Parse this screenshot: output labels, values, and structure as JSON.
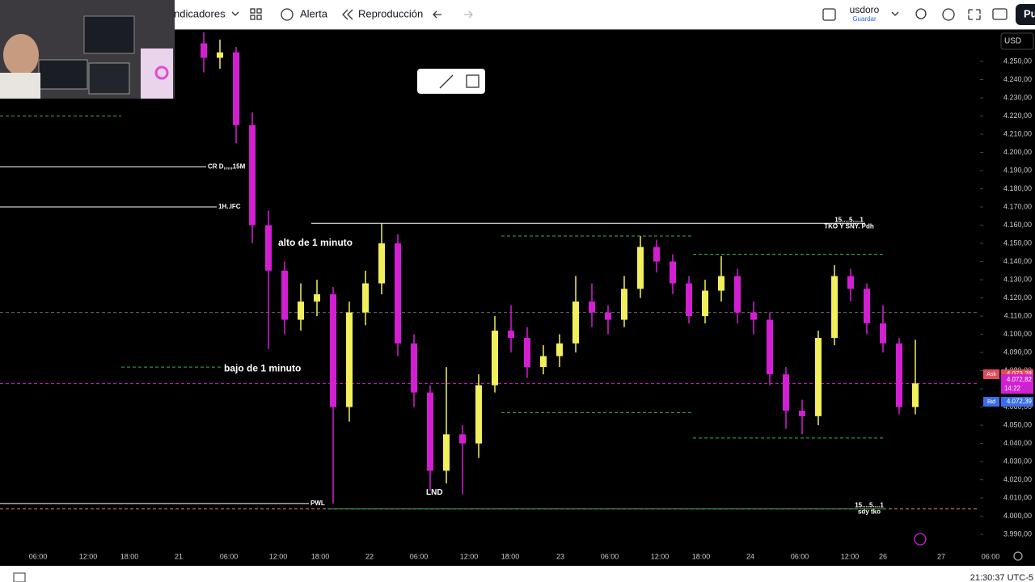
{
  "toolbar": {
    "indicators": "ndicadores",
    "alert": "Alerta",
    "replay": "Reproducción",
    "layout_name": "usdoro",
    "save": "Guardar",
    "publish": "Pu"
  },
  "currency": "USD",
  "clock": "21:30:37 UTC-5",
  "chart_data": {
    "type": "candlestick",
    "up_color": "#f2ef5c",
    "down_color": "#d21fd2",
    "ylim": [
      3981.6,
      4266.9
    ],
    "yticks": [
      {
        "value": 4250,
        "label": "4.250,00"
      },
      {
        "value": 4240,
        "label": "4.240,00"
      },
      {
        "value": 4230,
        "label": "4.230,00"
      },
      {
        "value": 4220,
        "label": "4.220,00"
      },
      {
        "value": 4210,
        "label": "4.210,00"
      },
      {
        "value": 4200,
        "label": "4.200,00"
      },
      {
        "value": 4190,
        "label": "4.190,00"
      },
      {
        "value": 4180,
        "label": "4.180,00"
      },
      {
        "value": 4170,
        "label": "4.170,00"
      },
      {
        "value": 4160,
        "label": "4.160,00"
      },
      {
        "value": 4150,
        "label": "4.150,00"
      },
      {
        "value": 4140,
        "label": "4.140,00"
      },
      {
        "value": 4130,
        "label": "4.130,00"
      },
      {
        "value": 4120,
        "label": "4.120,00"
      },
      {
        "value": 4110,
        "label": "4.110,00"
      },
      {
        "value": 4100,
        "label": "4.100,00"
      },
      {
        "value": 4090,
        "label": "4.090,00"
      },
      {
        "value": 4080,
        "label": "4.080,00"
      },
      {
        "value": 4070,
        "label": "4.070,00"
      },
      {
        "value": 4060,
        "label": "4.060,00"
      },
      {
        "value": 4050,
        "label": "4.050,00"
      },
      {
        "value": 4040,
        "label": "4.040,00"
      },
      {
        "value": 4030,
        "label": "4.030,00"
      },
      {
        "value": 4020,
        "label": "4.020,00"
      },
      {
        "value": 4010,
        "label": "4.010,00"
      },
      {
        "value": 4000,
        "label": "4.000,00"
      },
      {
        "value": 3990,
        "label": "3.990,00"
      }
    ],
    "xlabels": [
      "06:00",
      "12:00",
      "18:00",
      "21",
      "06:00",
      "12:00",
      "18:00",
      "22",
      "06:00",
      "12:00",
      "18:00",
      "23",
      "06:00",
      "12:00",
      "18:00",
      "24",
      "06:00",
      "12:00",
      "26",
      "27",
      "06:00"
    ],
    "open": [
      4260,
      4252,
      4255,
      4215,
      4160,
      4135,
      4108,
      4118,
      4122,
      4060,
      4112,
      4128,
      4150,
      4095,
      4068,
      4025,
      4045,
      4040,
      4072,
      4102,
      4098,
      4082,
      4088,
      4095,
      4118,
      4112,
      4108,
      4125,
      4148,
      4140,
      4128,
      4110,
      4124,
      4132,
      4112,
      4108,
      4078,
      4058,
      4055,
      4098,
      4132,
      4125,
      4106,
      4095,
      4060
    ],
    "high": [
      4266,
      4262,
      4258,
      4222,
      4168,
      4140,
      4128,
      4130,
      4126,
      4118,
      4135,
      4161,
      4155,
      4100,
      4072,
      4082,
      4050,
      4078,
      4110,
      4116,
      4104,
      4094,
      4100,
      4132,
      4128,
      4116,
      4132,
      4154,
      4152,
      4144,
      4132,
      4130,
      4143,
      4136,
      4118,
      4112,
      4082,
      4064,
      4102,
      4138,
      4136,
      4128,
      4116,
      4098,
      4097
    ],
    "low": [
      4244,
      4246,
      4205,
      4150,
      4092,
      4100,
      4102,
      4110,
      4007,
      4052,
      4105,
      4122,
      4088,
      4060,
      4014,
      4018,
      4012,
      4032,
      4068,
      4090,
      4076,
      4078,
      4082,
      4090,
      4104,
      4100,
      4104,
      4120,
      4134,
      4122,
      4106,
      4106,
      4118,
      4106,
      4100,
      4072,
      4048,
      4045,
      4050,
      4094,
      4118,
      4100,
      4090,
      4056,
      4056
    ],
    "close": [
      4252,
      4255,
      4215,
      4160,
      4135,
      4108,
      4118,
      4122,
      4060,
      4112,
      4128,
      4150,
      4095,
      4068,
      4025,
      4045,
      4040,
      4072,
      4102,
      4098,
      4082,
      4088,
      4095,
      4118,
      4112,
      4108,
      4125,
      4148,
      4140,
      4128,
      4110,
      4124,
      4132,
      4112,
      4108,
      4078,
      4058,
      4055,
      4098,
      4132,
      4125,
      4106,
      4095,
      4060,
      4073
    ],
    "levels": [
      {
        "value": 4220,
        "color": "#3fae4a",
        "dashed": true
      },
      {
        "value": 4192,
        "color": "#ffffff",
        "dashed": false,
        "label": "CR D,,,,,15M"
      },
      {
        "value": 4170,
        "color": "#ffffff",
        "dashed": false,
        "label": "1H..IFC"
      },
      {
        "value": 4161,
        "color": "#ffffff",
        "dashed": false,
        "label": "15....5....1",
        "label2": "TKO Y  SNY. Pdh"
      },
      {
        "value": 4154,
        "color": "#3fae4a",
        "dashed": true
      },
      {
        "value": 4144,
        "color": "#3fae4a",
        "dashed": true
      },
      {
        "value": 4112,
        "color": "#666666",
        "dashed": true
      },
      {
        "value": 4082,
        "color": "#3fae4a",
        "dashed": true
      },
      {
        "value": 4057,
        "color": "#3fae4a",
        "dashed": true
      },
      {
        "value": 4043,
        "color": "#3fae4a",
        "dashed": true
      },
      {
        "value": 4007,
        "color": "#ffffff",
        "dashed": false,
        "label": "PWL"
      },
      {
        "value": 4004,
        "color": "#e8913a",
        "dashed": true
      },
      {
        "value": 4004,
        "color": "#3fae4a",
        "dashed": false,
        "label": "15....5....1",
        "label2": "sdy  tko"
      },
      {
        "value": 4073,
        "color": "#d21fd2",
        "dashed": true
      }
    ],
    "annotations": [
      {
        "text": "alto  de  1 minuto",
        "value": 4150
      },
      {
        "text": "bajo   de  1  minuto",
        "value": 4081
      },
      {
        "text": "LND",
        "value": 4013
      }
    ],
    "quotes": [
      {
        "label": "Ask",
        "value": 4073.28,
        "value_label": "4.073,28",
        "color": "#e14b5a"
      },
      {
        "value": 4072.82,
        "value_label": "4.072,82",
        "extra": "14:22",
        "color": "#d21fd2"
      },
      {
        "label": "Bid",
        "value": 4072.39,
        "value_label": "4.072,39",
        "color": "#3a6ee8"
      }
    ]
  }
}
